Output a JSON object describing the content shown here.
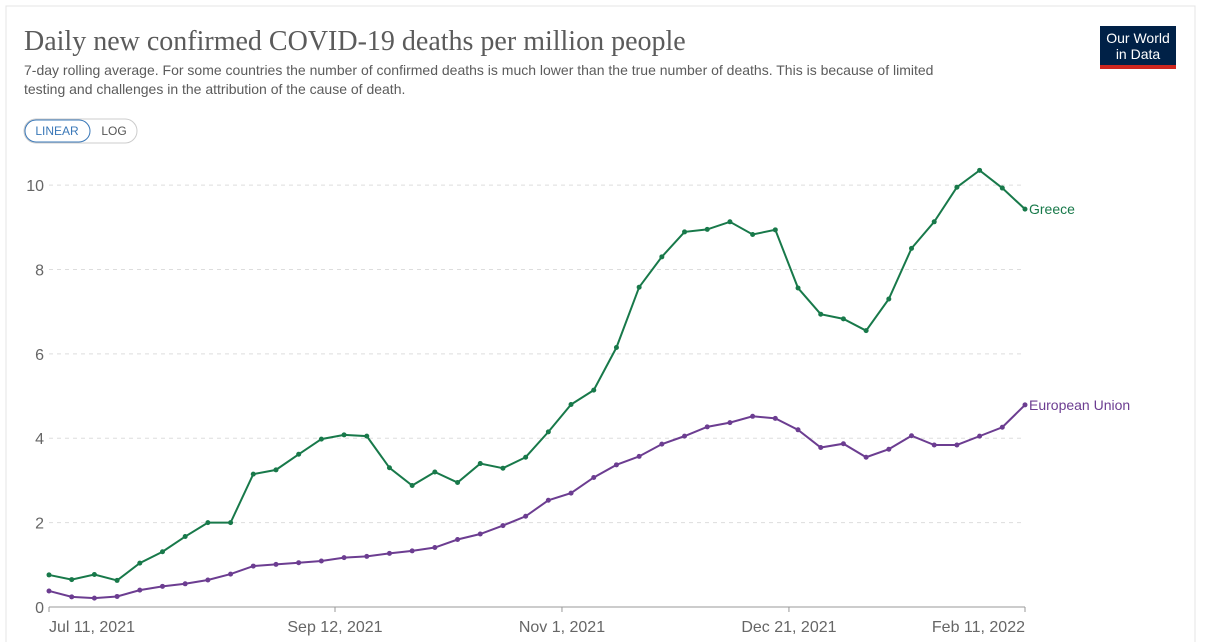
{
  "chart_data": {
    "type": "line",
    "title": "Daily new confirmed COVID-19 deaths per million people",
    "subtitle": [
      "7-day rolling average. For some countries the number of confirmed deaths is much lower than the true number of deaths. This is because of limited",
      "testing and challenges in the attribution of the cause of death."
    ],
    "buttons": [
      "LINEAR",
      "LOG"
    ],
    "logo": [
      "Our World",
      "in Data"
    ],
    "x": [
      "2021-07-11",
      "2021-07-16",
      "2021-07-21",
      "2021-07-26",
      "2021-07-31",
      "2021-08-05",
      "2021-08-10",
      "2021-08-15",
      "2021-08-20",
      "2021-08-25",
      "2021-08-30",
      "2021-09-04",
      "2021-09-09",
      "2021-09-14",
      "2021-09-19",
      "2021-09-24",
      "2021-09-29",
      "2021-10-04",
      "2021-10-09",
      "2021-10-14",
      "2021-10-19",
      "2021-10-24",
      "2021-10-29",
      "2021-11-03",
      "2021-11-08",
      "2021-11-13",
      "2021-11-18",
      "2021-11-23",
      "2021-11-28",
      "2021-12-03",
      "2021-12-08",
      "2021-12-13",
      "2021-12-18",
      "2021-12-23",
      "2021-12-28",
      "2022-01-02",
      "2022-01-07",
      "2022-01-12",
      "2022-01-17",
      "2022-01-22",
      "2022-01-27",
      "2022-02-01",
      "2022-02-06",
      "2022-02-11"
    ],
    "series": [
      {
        "name": "Greece",
        "color": "#18794a",
        "values": [
          0.76,
          0.65,
          0.77,
          0.63,
          1.04,
          1.31,
          1.67,
          2.0,
          2.0,
          3.15,
          3.25,
          3.62,
          3.98,
          4.08,
          4.05,
          3.3,
          2.88,
          3.2,
          2.95,
          3.4,
          3.29,
          3.55,
          4.15,
          4.8,
          5.14,
          6.15,
          7.58,
          8.3,
          8.89,
          8.95,
          9.13,
          8.83,
          8.94,
          7.56,
          6.94,
          6.83,
          6.55,
          7.3,
          8.5,
          9.13,
          9.95,
          10.35,
          9.93,
          9.43
        ]
      },
      {
        "name": "European Union",
        "color": "#6c3d91",
        "values": [
          0.38,
          0.24,
          0.21,
          0.25,
          0.4,
          0.49,
          0.55,
          0.64,
          0.78,
          0.97,
          1.01,
          1.05,
          1.09,
          1.17,
          1.2,
          1.27,
          1.33,
          1.41,
          1.6,
          1.73,
          1.93,
          2.15,
          2.53,
          2.7,
          3.07,
          3.37,
          3.57,
          3.86,
          4.05,
          4.27,
          4.37,
          4.52,
          4.47,
          4.2,
          3.78,
          3.87,
          3.55,
          3.74,
          4.06,
          3.84,
          3.84,
          4.05,
          4.26,
          4.79
        ]
      }
    ],
    "xlim": [
      "2021-07-11",
      "2022-02-11"
    ],
    "xticks": [
      {
        "value": "2021-07-11",
        "label": "Jul 11, 2021"
      },
      {
        "value": "2021-09-12",
        "label": "Sep 12, 2021"
      },
      {
        "value": "2021-11-01",
        "label": "Nov 1, 2021"
      },
      {
        "value": "2021-12-21",
        "label": "Dec 21, 2021"
      },
      {
        "value": "2022-02-11",
        "label": "Feb 11, 2022"
      }
    ],
    "ylim": [
      0,
      10.5
    ],
    "yticks": [
      0,
      2,
      4,
      6,
      8,
      10
    ],
    "grid": true
  }
}
